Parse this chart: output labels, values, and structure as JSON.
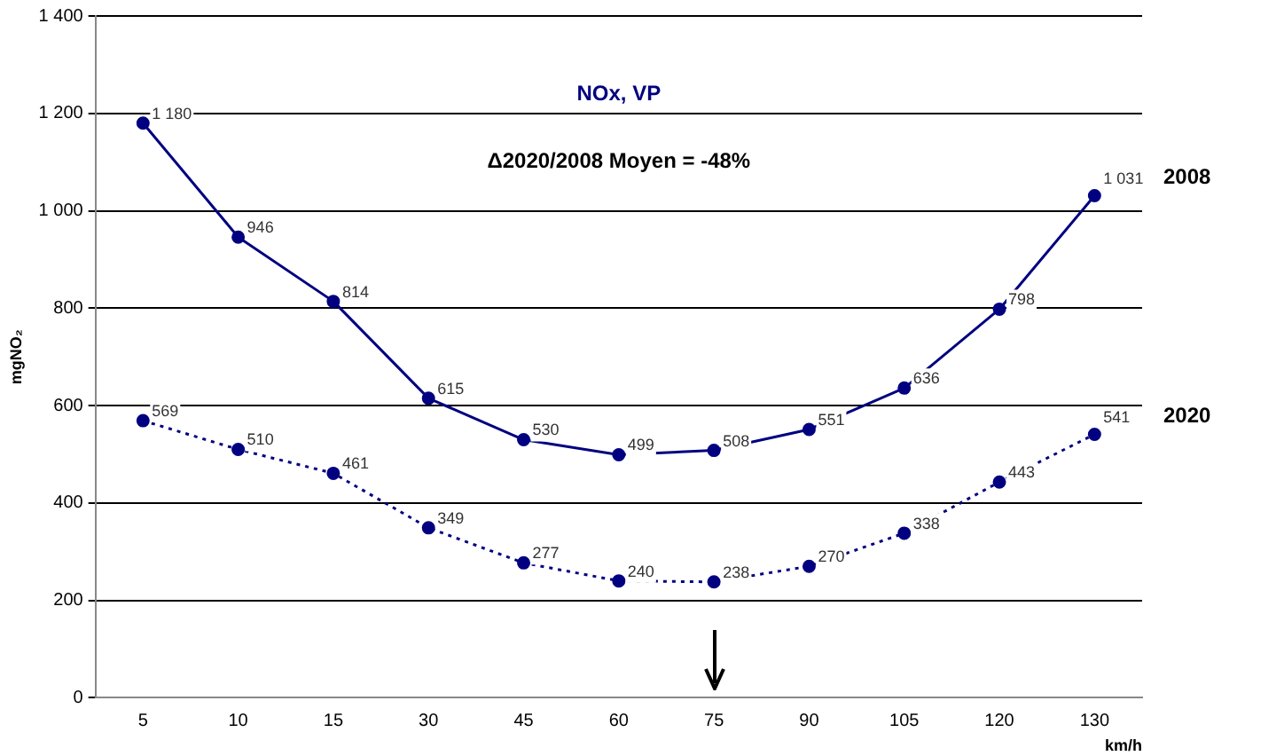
{
  "chart_data": {
    "type": "line",
    "title": "NOx, VP",
    "xlabel": "km/h",
    "ylabel": "mgNO₂",
    "annotations": [
      "Δ2020/2008 Moyen = -48%"
    ],
    "categories": [
      "5",
      "10",
      "15",
      "30",
      "45",
      "60",
      "75",
      "90",
      "105",
      "120",
      "130"
    ],
    "series": [
      {
        "name": "2008",
        "color": "#000080",
        "line_style": "solid",
        "values": [
          1180,
          946,
          814,
          615,
          530,
          499,
          508,
          551,
          636,
          798,
          1031
        ],
        "value_labels": [
          "1 180",
          "946",
          "814",
          "615",
          "530",
          "499",
          "508",
          "551",
          "636",
          "798",
          "1 031"
        ]
      },
      {
        "name": "2020",
        "color": "#000080",
        "line_style": "dotted",
        "values": [
          569,
          510,
          461,
          349,
          277,
          240,
          238,
          270,
          338,
          443,
          541
        ],
        "value_labels": [
          "569",
          "510",
          "461",
          "349",
          "277",
          "240",
          "238",
          "270",
          "338",
          "443",
          "541"
        ]
      }
    ],
    "ylim": [
      0,
      1400
    ],
    "yticks": [
      0,
      200,
      400,
      600,
      800,
      {
        "value": 1000,
        "label": "1 000"
      },
      {
        "value": 1200,
        "label": "1 200"
      },
      {
        "value": 1400,
        "label": "1 400"
      }
    ],
    "grid": "y",
    "legend": false,
    "marker": "circle"
  }
}
